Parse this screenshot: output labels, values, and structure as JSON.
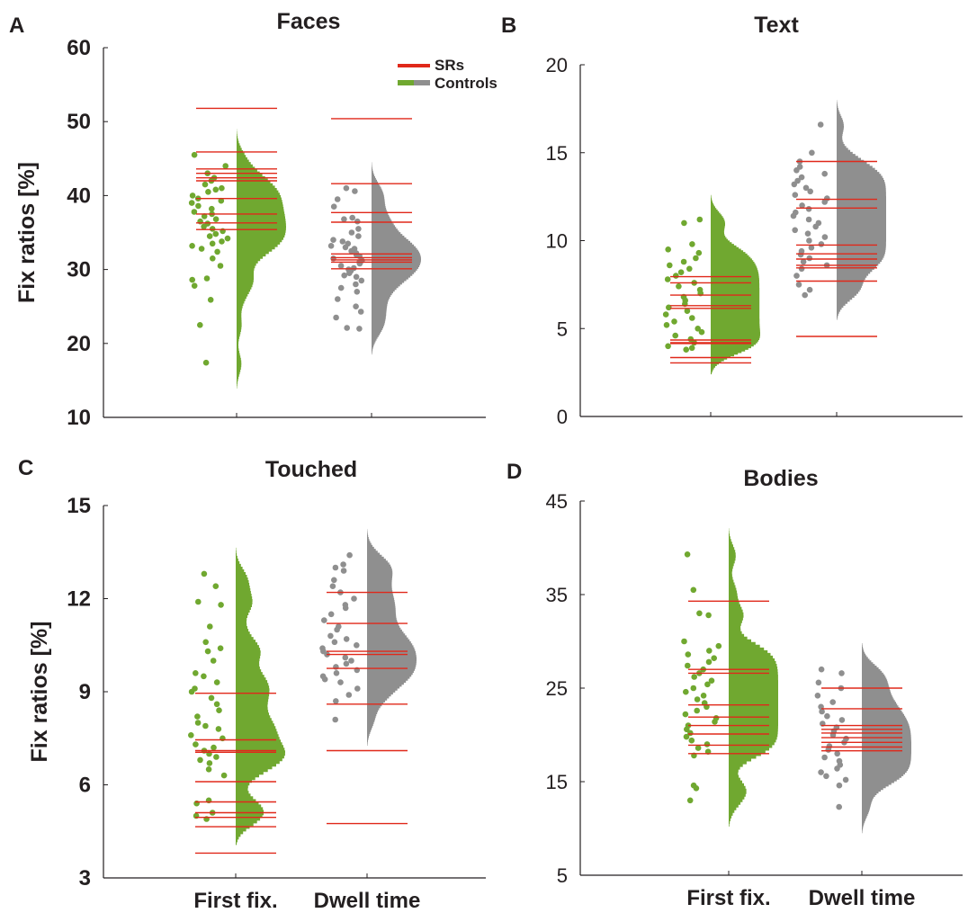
{
  "legend": {
    "entries": [
      {
        "label": "SRs",
        "color": "#e0281a"
      },
      {
        "label": "Controls",
        "colors": [
          "#70a830",
          "#8f8f8f"
        ]
      }
    ]
  },
  "colors": {
    "srs": "#e0281a",
    "first_fix": "#70a830",
    "dwell_time": "#8f8f8f",
    "axis": "#231f20"
  },
  "chart_data": [
    {
      "panel": "A",
      "type": "raincloud",
      "title": "Faces",
      "ylabel": "Fix ratios [%]",
      "ylim": [
        10,
        60
      ],
      "yticks": [
        "10",
        "20",
        "30",
        "40",
        "50",
        "60"
      ],
      "categories": [
        "First fix.",
        "Dwell time"
      ],
      "show_xlabels": false,
      "series": [
        {
          "name": "SRs",
          "first_fix": [
            51.8,
            45.9,
            43.6,
            43.0,
            42.4,
            42.0,
            39.6,
            37.5,
            36.3,
            35.4
          ],
          "dwell_time": [
            50.4,
            41.6,
            37.7,
            36.4,
            32.1,
            31.6,
            31.3,
            31.0,
            30.1
          ]
        },
        {
          "name": "Controls",
          "first_fix": [
            45.5,
            44.0,
            43.0,
            42.4,
            42.0,
            41.5,
            41.0,
            40.8,
            40.5,
            40.0,
            39.6,
            39.3,
            39.0,
            38.6,
            38.2,
            37.8,
            37.5,
            37.2,
            36.8,
            36.5,
            36.2,
            35.8,
            35.5,
            35.2,
            34.8,
            34.5,
            34.2,
            33.8,
            33.5,
            33.2,
            32.8,
            32.4,
            31.5,
            30.5,
            28.8,
            28.6,
            27.8,
            25.9,
            22.5,
            17.4
          ],
          "dwell_time": [
            41.0,
            40.6,
            39.5,
            38.5,
            37.0,
            36.8,
            36.5,
            35.5,
            35.0,
            34.5,
            34.0,
            33.8,
            33.5,
            33.2,
            33.0,
            32.8,
            32.5,
            32.2,
            32.0,
            31.8,
            31.5,
            31.2,
            31.0,
            30.8,
            30.5,
            30.2,
            30.0,
            29.8,
            29.5,
            29.2,
            29.0,
            28.5,
            28.0,
            27.5,
            27.0,
            26.0,
            25.0,
            24.3,
            23.5,
            22.1,
            22.0
          ]
        }
      ]
    },
    {
      "panel": "B",
      "type": "raincloud",
      "title": "Text",
      "ylabel": "",
      "ylim": [
        0,
        20
      ],
      "yticks": [
        "0",
        "5",
        "10",
        "15",
        "20"
      ],
      "categories": [
        "First fix.",
        "Dwell time"
      ],
      "show_xlabels": false,
      "series": [
        {
          "name": "SRs",
          "first_fix": [
            7.95,
            7.6,
            6.9,
            6.3,
            6.15,
            4.35,
            4.2,
            4.15,
            3.35,
            3.05
          ],
          "dwell_time": [
            14.5,
            12.35,
            11.85,
            9.75,
            9.25,
            8.95,
            8.6,
            8.45,
            7.7,
            4.55
          ]
        },
        {
          "name": "Controls",
          "first_fix": [
            11.2,
            11.0,
            9.8,
            9.5,
            9.3,
            9.0,
            8.8,
            8.6,
            8.4,
            8.2,
            8.0,
            7.8,
            7.6,
            7.4,
            7.2,
            7.0,
            6.8,
            6.6,
            6.4,
            6.2,
            6.0,
            5.8,
            5.6,
            5.4,
            5.2,
            5.0,
            4.8,
            4.6,
            4.4,
            4.2,
            4.0,
            3.9,
            3.8
          ],
          "dwell_time": [
            16.6,
            15.0,
            14.5,
            14.2,
            14.0,
            13.8,
            13.6,
            13.4,
            13.2,
            13.0,
            12.8,
            12.6,
            12.4,
            12.2,
            12.0,
            11.8,
            11.6,
            11.4,
            11.2,
            11.0,
            10.8,
            10.6,
            10.4,
            10.2,
            10.0,
            9.8,
            9.6,
            9.4,
            9.2,
            9.0,
            8.8,
            8.6,
            8.4,
            8.0,
            7.5,
            7.2,
            6.9
          ]
        }
      ]
    },
    {
      "panel": "C",
      "type": "raincloud",
      "title": "Touched",
      "ylabel": "Fix ratios [%]",
      "ylim": [
        3,
        15
      ],
      "yticks": [
        "3",
        "6",
        "9",
        "12",
        "15"
      ],
      "categories": [
        "First fix.",
        "Dwell time"
      ],
      "show_xlabels": true,
      "series": [
        {
          "name": "SRs",
          "first_fix": [
            8.95,
            7.45,
            7.1,
            7.05,
            6.1,
            5.45,
            5.1,
            4.95,
            4.65,
            3.8
          ],
          "dwell_time": [
            12.2,
            11.2,
            10.3,
            10.2,
            9.75,
            8.6,
            7.1,
            4.75
          ]
        },
        {
          "name": "Controls",
          "first_fix": [
            12.8,
            12.4,
            11.9,
            11.8,
            11.1,
            10.6,
            10.4,
            10.3,
            10.0,
            9.6,
            9.5,
            9.3,
            9.1,
            9.0,
            8.8,
            8.6,
            8.4,
            8.2,
            8.0,
            7.9,
            7.8,
            7.6,
            7.5,
            7.3,
            7.2,
            7.1,
            7.0,
            6.9,
            6.8,
            6.7,
            6.5,
            6.3,
            5.5,
            5.4,
            5.1,
            5.0,
            4.9
          ],
          "dwell_time": [
            13.4,
            13.1,
            13.0,
            12.9,
            12.6,
            12.4,
            12.2,
            12.0,
            11.8,
            11.7,
            11.5,
            11.3,
            11.1,
            11.0,
            10.8,
            10.7,
            10.6,
            10.5,
            10.4,
            10.3,
            10.2,
            10.1,
            10.0,
            9.9,
            9.8,
            9.7,
            9.6,
            9.5,
            9.4,
            9.3,
            9.1,
            8.9,
            8.7,
            8.1
          ]
        }
      ]
    },
    {
      "panel": "D",
      "type": "raincloud",
      "title": "Bodies",
      "ylabel": "",
      "ylim": [
        5,
        45
      ],
      "yticks": [
        "5",
        "15",
        "25",
        "35",
        "45"
      ],
      "categories": [
        "First fix.",
        "Dwell time"
      ],
      "show_xlabels": true,
      "series": [
        {
          "name": "SRs",
          "first_fix": [
            34.3,
            27.0,
            26.6,
            23.2,
            21.9,
            21.0,
            20.1,
            18.9,
            18.0
          ],
          "dwell_time": [
            25.0,
            22.8,
            21.0,
            20.6,
            20.2,
            19.7,
            19.2,
            18.7,
            18.3
          ]
        },
        {
          "name": "Controls",
          "first_fix": [
            39.3,
            35.5,
            33.0,
            32.8,
            30.0,
            29.5,
            29.0,
            28.6,
            28.2,
            27.8,
            27.4,
            27.0,
            26.6,
            26.2,
            25.8,
            25.4,
            25.0,
            24.6,
            24.2,
            23.8,
            23.4,
            23.0,
            22.6,
            22.2,
            21.8,
            21.4,
            21.0,
            20.6,
            20.2,
            19.8,
            19.4,
            19.0,
            18.6,
            18.2,
            17.8,
            14.6,
            14.3,
            13.0
          ],
          "dwell_time": [
            27.0,
            26.6,
            25.6,
            25.0,
            24.2,
            23.5,
            23.0,
            22.5,
            22.0,
            21.6,
            21.2,
            20.8,
            20.4,
            20.0,
            19.6,
            19.2,
            18.8,
            18.4,
            18.0,
            17.6,
            17.2,
            16.8,
            16.4,
            16.0,
            15.6,
            15.2,
            14.6,
            12.3
          ]
        }
      ]
    }
  ]
}
